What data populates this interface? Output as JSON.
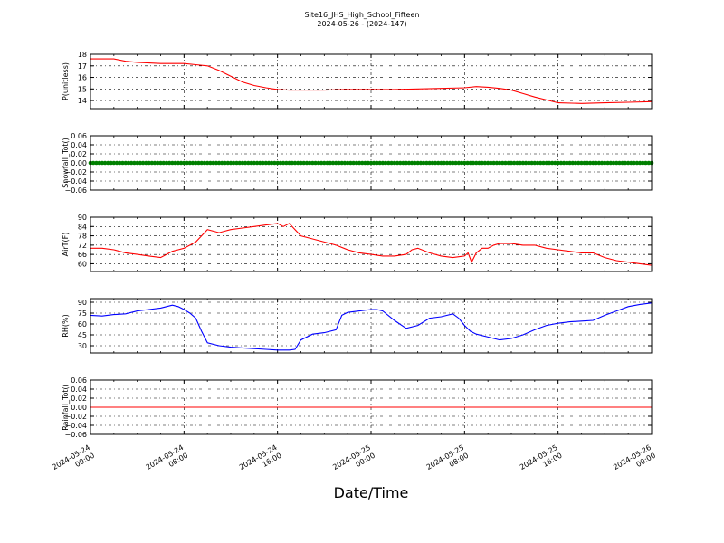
{
  "figure": {
    "title_line1": "Site16_JHS_High_School_Fifteen",
    "title_line2": "2024-05-26 - (2024-147)",
    "xlabel": "Date/Time",
    "x_ticks": [
      {
        "line1": "2024-05-24",
        "line2": "00:00"
      },
      {
        "line1": "2024-05-24",
        "line2": "08:00"
      },
      {
        "line1": "2024-05-24",
        "line2": "16:00"
      },
      {
        "line1": "2024-05-25",
        "line2": "00:00"
      },
      {
        "line1": "2024-05-25",
        "line2": "08:00"
      },
      {
        "line1": "2024-05-25",
        "line2": "16:00"
      },
      {
        "line1": "2024-05-26",
        "line2": "00:00"
      }
    ]
  },
  "chart_data": [
    {
      "type": "line",
      "ylabel": "P(unitless)",
      "color": "#ff0000",
      "x_range_hours": [
        0,
        48
      ],
      "ylim": [
        13.3,
        18
      ],
      "yticks": [
        14,
        15,
        16,
        17,
        18
      ],
      "ytick_labels": [
        "14",
        "15",
        "16",
        "17",
        "18"
      ],
      "x_hours": [
        0,
        2,
        3,
        4,
        6,
        7,
        8,
        9,
        10,
        11,
        12,
        13,
        14,
        15,
        16,
        17,
        18,
        20,
        22,
        24,
        26,
        28,
        30,
        32,
        33,
        34,
        35,
        36,
        37,
        38,
        39,
        40,
        42,
        44,
        46,
        48
      ],
      "values": [
        17.6,
        17.6,
        17.4,
        17.3,
        17.2,
        17.2,
        17.2,
        17.1,
        17.0,
        16.6,
        16.1,
        15.6,
        15.3,
        15.1,
        14.95,
        14.9,
        14.9,
        14.9,
        14.95,
        14.95,
        14.95,
        15.0,
        15.05,
        15.1,
        15.2,
        15.15,
        15.05,
        14.9,
        14.6,
        14.3,
        14.05,
        13.8,
        13.75,
        13.8,
        13.85,
        13.9
      ]
    },
    {
      "type": "line",
      "ylabel": "Snowfall_Tot()",
      "color": "#008000",
      "x_range_hours": [
        0,
        48
      ],
      "ylim": [
        -0.06,
        0.06
      ],
      "yticks": [
        -0.06,
        -0.04,
        -0.02,
        0.0,
        0.02,
        0.04,
        0.06
      ],
      "ytick_labels": [
        "−0.06",
        "−0.04",
        "−0.02",
        "0.00",
        "0.02",
        "0.04",
        "0.06"
      ],
      "x_hours": [
        0,
        48
      ],
      "values": [
        0.0,
        0.0
      ],
      "markers": true
    },
    {
      "type": "line",
      "ylabel": "AirT(F)",
      "color": "#ff0000",
      "x_range_hours": [
        0,
        48
      ],
      "ylim": [
        55,
        90
      ],
      "yticks": [
        60,
        66,
        72,
        78,
        84,
        90
      ],
      "ytick_labels": [
        "60",
        "66",
        "72",
        "78",
        "84",
        "90"
      ],
      "x_hours": [
        0,
        1,
        2,
        3,
        4,
        5,
        6,
        6.5,
        7,
        7.5,
        8,
        8.5,
        9,
        9.5,
        10,
        10.5,
        11,
        11.5,
        12,
        13,
        14,
        15,
        16,
        16.5,
        17,
        17.5,
        18,
        19,
        20,
        21,
        22,
        23,
        24,
        25,
        26,
        27,
        27.5,
        28,
        29,
        30,
        31,
        32,
        32.3,
        32.6,
        33,
        33.5,
        34,
        34.5,
        35,
        36,
        37,
        38,
        39,
        40,
        41,
        42,
        43,
        44,
        45,
        46,
        47,
        48
      ],
      "values": [
        70,
        70,
        69,
        67,
        66,
        65,
        64,
        66,
        68,
        69,
        70,
        72,
        74,
        78,
        82,
        81,
        80,
        81,
        82,
        83,
        84,
        85,
        86,
        84,
        86,
        82,
        78,
        76,
        74,
        72,
        69,
        67,
        66,
        65,
        65,
        66,
        69,
        70,
        67,
        65,
        64,
        65,
        67,
        61,
        67,
        70,
        70,
        72,
        73,
        73,
        72,
        72,
        70,
        69,
        68,
        67,
        67,
        64,
        62,
        61,
        60,
        59
      ]
    },
    {
      "type": "line",
      "ylabel": "RH(%)",
      "color": "#0000ff",
      "x_range_hours": [
        0,
        48
      ],
      "ylim": [
        20,
        95
      ],
      "yticks": [
        30,
        45,
        60,
        75,
        90
      ],
      "ytick_labels": [
        "30",
        "45",
        "60",
        "75",
        "90"
      ],
      "x_hours": [
        0,
        1,
        2,
        3,
        4,
        5,
        6,
        6.5,
        7,
        7.5,
        8,
        8.5,
        9,
        9.5,
        10,
        11,
        12,
        13,
        14,
        15,
        16,
        17,
        17.5,
        18,
        19,
        20,
        21,
        21.5,
        22,
        23,
        24,
        24.5,
        25,
        26,
        27,
        28,
        29,
        30,
        31,
        31.5,
        32,
        32.5,
        33,
        34,
        35,
        36,
        37,
        38,
        39,
        40,
        41,
        42,
        43,
        44,
        45,
        46,
        47,
        48
      ],
      "values": [
        72,
        71,
        73,
        74,
        78,
        80,
        82,
        84,
        86,
        84,
        80,
        75,
        68,
        50,
        34,
        30,
        28,
        27,
        26,
        25,
        24,
        24,
        25,
        38,
        46,
        48,
        52,
        72,
        76,
        78,
        80,
        80,
        78,
        65,
        54,
        58,
        68,
        70,
        74,
        68,
        58,
        50,
        46,
        42,
        38,
        40,
        45,
        52,
        58,
        61,
        63,
        64,
        65,
        72,
        78,
        84,
        87,
        89
      ]
    },
    {
      "type": "line",
      "ylabel": "Rainfall_Tot()",
      "color": "#ff0000",
      "x_range_hours": [
        0,
        48
      ],
      "ylim": [
        -0.06,
        0.06
      ],
      "yticks": [
        -0.06,
        -0.04,
        -0.02,
        0.0,
        0.02,
        0.04,
        0.06
      ],
      "ytick_labels": [
        "−0.06",
        "−0.04",
        "−0.02",
        "0.00",
        "0.02",
        "0.04",
        "0.06"
      ],
      "x_hours": [
        0,
        48
      ],
      "values": [
        0.0,
        0.0
      ]
    }
  ]
}
